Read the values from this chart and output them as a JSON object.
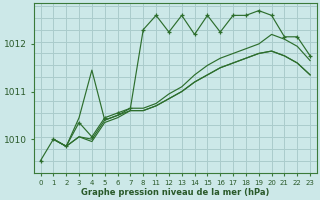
{
  "title": "Graphe pression niveau de la mer (hPa)",
  "bg_color": "#cce8e8",
  "grid_color": "#aacccc",
  "line_color": "#2d6e2d",
  "ylim": [
    1009.3,
    1012.85
  ],
  "yticks": [
    1010,
    1011,
    1012
  ],
  "lines": [
    {
      "x": [
        0,
        1,
        2,
        3,
        4,
        5,
        6,
        7,
        8,
        11,
        12,
        13,
        14,
        15,
        16,
        17,
        18,
        19,
        20,
        21,
        22,
        23
      ],
      "y": [
        1009.55,
        1010.0,
        1009.85,
        1010.35,
        1010.05,
        1010.45,
        1010.55,
        1010.65,
        1012.3,
        1012.6,
        1012.25,
        1012.6,
        1012.2,
        1012.6,
        1012.25,
        1012.6,
        1012.6,
        1012.7,
        1012.6,
        1012.15,
        1012.15,
        1011.75
      ],
      "marker": "+"
    },
    {
      "x": [
        1,
        2,
        3,
        4,
        5,
        6,
        7,
        8,
        11,
        12,
        13,
        14,
        15,
        16,
        17,
        18,
        19,
        20,
        21,
        22,
        23
      ],
      "y": [
        1010.0,
        1009.85,
        1010.05,
        1010.0,
        1010.4,
        1010.5,
        1010.65,
        1010.65,
        1010.75,
        1010.95,
        1011.1,
        1011.35,
        1011.55,
        1011.7,
        1011.8,
        1011.9,
        1012.0,
        1012.2,
        1012.1,
        1011.95,
        1011.65
      ],
      "marker": null
    },
    {
      "x": [
        1,
        2,
        3,
        4,
        5,
        6,
        7,
        8,
        11,
        12,
        13,
        14,
        15,
        16,
        17,
        18,
        19,
        20,
        21,
        22,
        23
      ],
      "y": [
        1010.0,
        1009.85,
        1010.05,
        1009.95,
        1010.35,
        1010.45,
        1010.6,
        1010.6,
        1010.7,
        1010.85,
        1011.0,
        1011.2,
        1011.35,
        1011.5,
        1011.6,
        1011.7,
        1011.8,
        1011.85,
        1011.75,
        1011.6,
        1011.35
      ],
      "marker": null
    },
    {
      "x": [
        1,
        2,
        3,
        4,
        5,
        6,
        7,
        8,
        11,
        12,
        13,
        14,
        15,
        16,
        17,
        18,
        19,
        20,
        21,
        22,
        23
      ],
      "y": [
        1010.0,
        1009.85,
        1010.45,
        1011.45,
        1010.4,
        1010.5,
        1010.6,
        1010.6,
        1010.7,
        1010.85,
        1011.0,
        1011.2,
        1011.35,
        1011.5,
        1011.6,
        1011.7,
        1011.8,
        1011.85,
        1011.75,
        1011.6,
        1011.35
      ],
      "marker": null
    }
  ]
}
